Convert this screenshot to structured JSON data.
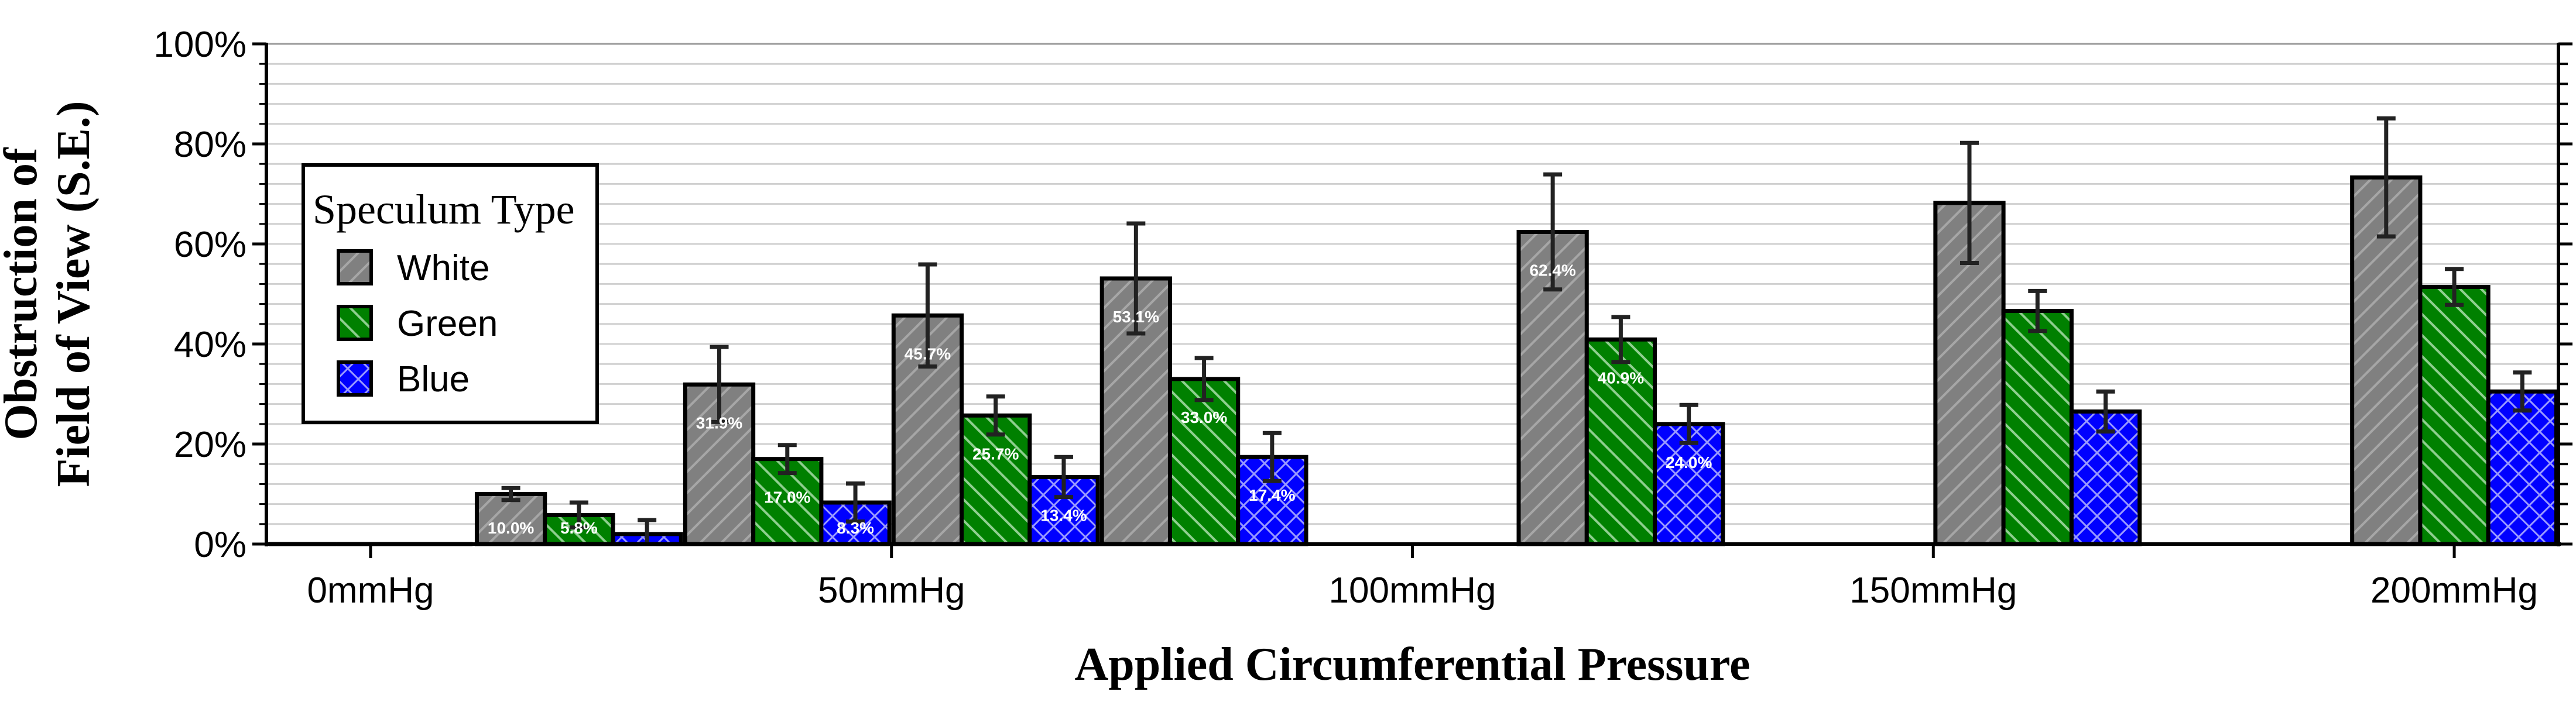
{
  "chart_data": {
    "type": "bar",
    "title": "",
    "xlabel": "Applied Circumferential Pressure",
    "ylabel_lines": [
      "Obstruction of",
      "Field of View (S.E.)"
    ],
    "ylim": [
      0,
      100
    ],
    "y_ticks": [
      "0%",
      "20%",
      "40%",
      "60%",
      "80%",
      "100%"
    ],
    "x_ticks": [
      {
        "value": 0,
        "label": "0mmHg"
      },
      {
        "value": 50,
        "label": "50mmHg"
      },
      {
        "value": 100,
        "label": "100mmHg"
      },
      {
        "value": 150,
        "label": "150mmHg"
      },
      {
        "value": 200,
        "label": "200mmHg"
      }
    ],
    "x_range": [
      -10,
      210
    ],
    "grid": "horizontal minor lines every 4%",
    "legend": {
      "title": "Speculum Type",
      "placement": "left"
    },
    "series": [
      {
        "name": "White",
        "color": "#808080",
        "pattern": "diagonal",
        "points": [
          {
            "x": 0,
            "y": 0,
            "err": 0,
            "label": ""
          },
          {
            "x": 20,
            "y": 10.0,
            "err": 1.2,
            "label": "10.0%"
          },
          {
            "x": 40,
            "y": 31.9,
            "err": 7.5,
            "label": "31.9%"
          },
          {
            "x": 60,
            "y": 45.7,
            "err": 10.2,
            "label": "45.7%"
          },
          {
            "x": 80,
            "y": 53.1,
            "err": 11.0,
            "label": "53.1%"
          },
          {
            "x": 120,
            "y": 62.4,
            "err": 11.5,
            "label": "62.4%"
          },
          {
            "x": 160,
            "y": 68.2,
            "err": 12.0,
            "label": ""
          },
          {
            "x": 200,
            "y": 73.3,
            "err": 11.8,
            "label": ""
          }
        ]
      },
      {
        "name": "Green",
        "color": "#008000",
        "pattern": "diagonal-reverse",
        "points": [
          {
            "x": 0,
            "y": 0,
            "err": 0,
            "label": ""
          },
          {
            "x": 20,
            "y": 5.8,
            "err": 2.5,
            "label": "5.8%"
          },
          {
            "x": 40,
            "y": 17.0,
            "err": 2.8,
            "label": "17.0%"
          },
          {
            "x": 60,
            "y": 25.7,
            "err": 3.8,
            "label": "25.7%"
          },
          {
            "x": 80,
            "y": 33.0,
            "err": 4.2,
            "label": "33.0%"
          },
          {
            "x": 120,
            "y": 40.9,
            "err": 4.5,
            "label": "40.9%"
          },
          {
            "x": 160,
            "y": 46.6,
            "err": 4.0,
            "label": ""
          },
          {
            "x": 200,
            "y": 51.4,
            "err": 3.6,
            "label": ""
          }
        ]
      },
      {
        "name": "Blue",
        "color": "#0000ff",
        "pattern": "crosshatch",
        "points": [
          {
            "x": 0,
            "y": 0,
            "err": 0,
            "label": ""
          },
          {
            "x": 20,
            "y": 2.0,
            "err": 2.8,
            "label": ""
          },
          {
            "x": 40,
            "y": 8.3,
            "err": 3.8,
            "label": "8.3%"
          },
          {
            "x": 60,
            "y": 13.4,
            "err": 4.0,
            "label": "13.4%"
          },
          {
            "x": 80,
            "y": 17.4,
            "err": 4.8,
            "label": "17.4%"
          },
          {
            "x": 120,
            "y": 24.0,
            "err": 3.8,
            "label": "24.0%"
          },
          {
            "x": 160,
            "y": 26.5,
            "err": 4.0,
            "label": ""
          },
          {
            "x": 200,
            "y": 30.5,
            "err": 3.8,
            "label": ""
          }
        ]
      }
    ]
  }
}
